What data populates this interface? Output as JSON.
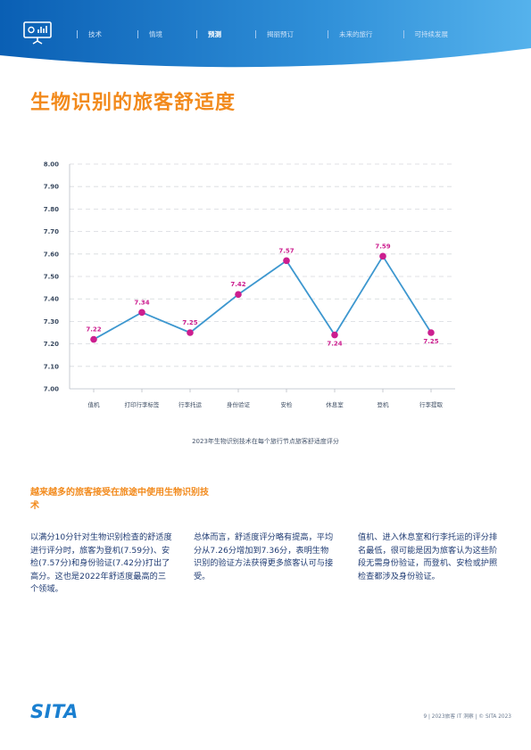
{
  "header": {
    "logo_icon": "presentation-chart-icon",
    "nav": [
      {
        "label": "技术",
        "active": false
      },
      {
        "label": "情境",
        "active": false
      },
      {
        "label": "预测",
        "active": true
      },
      {
        "label": "揭丽预订",
        "active": false
      },
      {
        "label": "未来的旅行",
        "active": false
      },
      {
        "label": "可持续发展",
        "active": false
      }
    ]
  },
  "title": "生物识别的旅客舒适度",
  "chart_data": {
    "type": "line",
    "categories": [
      "值机",
      "打印行李标签",
      "行李托运",
      "身份验证",
      "安检",
      "休息室",
      "登机",
      "行李提取"
    ],
    "values": [
      7.22,
      7.34,
      7.25,
      7.42,
      7.57,
      7.24,
      7.59,
      7.25
    ],
    "value_labels": [
      "7.22",
      "7.34",
      "7.25",
      "7.42",
      "7.57",
      "7.24",
      "7.59",
      "7.25"
    ],
    "yticks": [
      "7.00",
      "7.10",
      "7.20",
      "7.30",
      "7.40",
      "7.50",
      "7.60",
      "7.70",
      "7.80",
      "7.90",
      "8.00"
    ],
    "ylim": [
      7.0,
      8.0
    ],
    "grid": true,
    "line_color": "#3d97cf",
    "marker_color": "#cc1e8f",
    "caption": "2023年生物识别技术在每个旅行节点旅客舒适度评分"
  },
  "section": {
    "heading": "越来越多的旅客接受在旅途中使用生物识别技术",
    "col1": "以满分10分针对生物识别检查的舒适度进行评分时，旅客为登机(7.59分)、安检(7.57分)和身份验证(7.42分)打出了高分。这也是2022年舒适度最高的三个领域。",
    "col2": "总体而言，舒适度评分略有提高，平均分从7.26分增加到7.36分，表明生物识别的验证方法获得更多旅客认可与接受。",
    "col3": "值机、进入休息室和行李托运的评分排名最低，很可能是因为旅客认为这些阶段无需身份验证，而登机、安检或护照检查都涉及身份验证。"
  },
  "footer": {
    "logo": "SITA",
    "text": "9 | 2023旅客 IT 洞察 | © SITA 2023"
  },
  "colors": {
    "accent": "#f28a1c",
    "banner": "#0a5fb4",
    "text": "#1f3b73"
  }
}
